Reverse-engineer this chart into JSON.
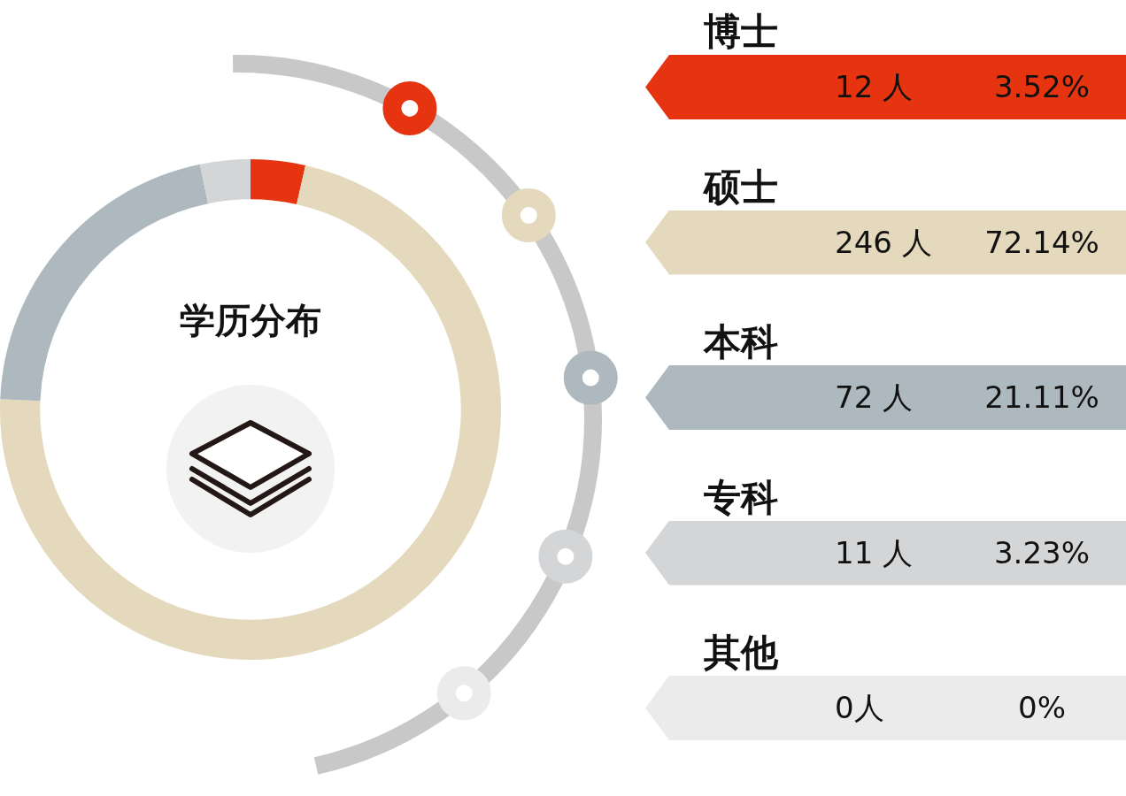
{
  "chart_data": [
    {
      "type": "donut",
      "title": "学历分布",
      "categories": [
        null,
        null,
        null,
        null,
        null
      ],
      "values": [
        3.52,
        72.14,
        21.11,
        3.23,
        0
      ],
      "colors": [
        "#e5340f",
        "#e4d9bc",
        "#adb8bf",
        "#d4d5d7",
        "#ebebeb"
      ]
    },
    {
      "type": "other",
      "categories": [
        "博士",
        "硕士",
        "本科",
        "专科",
        "其他"
      ],
      "values": [
        12,
        246,
        72,
        11,
        0
      ],
      "colors": [
        "#e5340f",
        "#e4d9bc",
        "#adb8bf",
        "#d4d5d7",
        "#ebebeb"
      ],
      "value_labels": [
        "12 人",
        "246 人",
        "72 人",
        "11 人",
        "0人"
      ],
      "annotations": [
        "3.52%",
        "72.14%",
        "21.11%",
        "3.23%",
        "0%"
      ]
    }
  ]
}
